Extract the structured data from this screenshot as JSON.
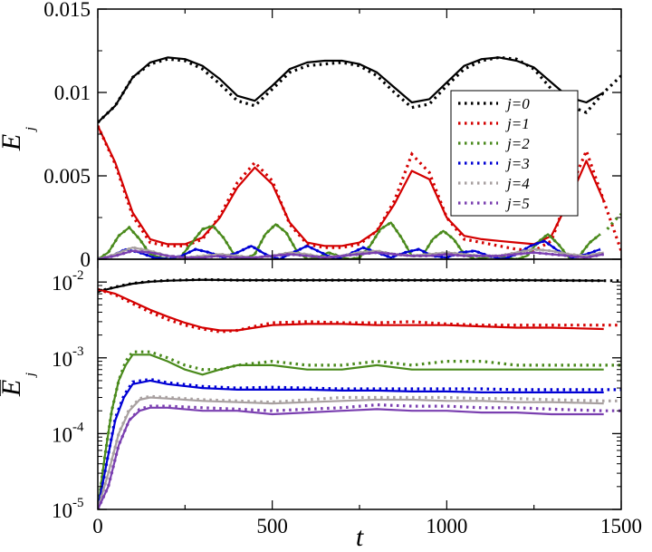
{
  "chart_data": [
    {
      "type": "line",
      "panel": "top",
      "ylabel": "E",
      "ylabel_sub": "j",
      "xlabel": "",
      "xlim": [
        0,
        1500
      ],
      "ylim": [
        0,
        0.015
      ],
      "yscale": "linear",
      "xticks": [
        0,
        500,
        1000,
        1500
      ],
      "yticks": [
        0,
        0.005,
        0.01,
        0.015
      ],
      "ytick_labels": [
        "0",
        "0.005",
        "0.01",
        "0.015"
      ],
      "grid": false,
      "legend_position": "right",
      "series": [
        {
          "name": "j=0",
          "color": "#000000",
          "x": [
            0,
            50,
            100,
            150,
            200,
            250,
            300,
            350,
            400,
            450,
            500,
            550,
            600,
            650,
            700,
            750,
            800,
            850,
            900,
            950,
            1000,
            1050,
            1100,
            1150,
            1200,
            1250,
            1300,
            1350,
            1400,
            1450
          ],
          "solid": [
            0.0082,
            0.0092,
            0.0109,
            0.0118,
            0.0121,
            0.012,
            0.0116,
            0.0108,
            0.0098,
            0.0095,
            0.0104,
            0.0114,
            0.0118,
            0.0119,
            0.0119,
            0.0117,
            0.0112,
            0.0103,
            0.0094,
            0.0096,
            0.0106,
            0.0116,
            0.012,
            0.0121,
            0.0119,
            0.0115,
            0.0106,
            0.0097,
            0.0094,
            0.01
          ],
          "dotted": [
            0.0082,
            0.0092,
            0.0109,
            0.0117,
            0.012,
            0.0119,
            0.0114,
            0.0105,
            0.0095,
            0.0092,
            0.0102,
            0.0112,
            0.0116,
            0.0117,
            0.0118,
            0.0116,
            0.011,
            0.01,
            0.0091,
            0.0093,
            0.0104,
            0.0114,
            0.0119,
            0.0121,
            0.012,
            0.0114,
            0.0102,
            0.0092,
            0.0088,
            0.01,
            0.011
          ]
        },
        {
          "name": "j=1",
          "color": "#d40000",
          "x": [
            0,
            50,
            100,
            150,
            200,
            250,
            300,
            350,
            400,
            450,
            500,
            550,
            600,
            650,
            700,
            750,
            800,
            850,
            900,
            950,
            1000,
            1050,
            1100,
            1150,
            1200,
            1250,
            1300,
            1350,
            1400,
            1450
          ],
          "solid": [
            0.008,
            0.0058,
            0.0028,
            0.0012,
            0.0009,
            0.0009,
            0.0013,
            0.0025,
            0.0043,
            0.0055,
            0.0045,
            0.0022,
            0.001,
            0.0008,
            0.0008,
            0.001,
            0.0017,
            0.0033,
            0.0053,
            0.0048,
            0.0025,
            0.0014,
            0.0012,
            0.0011,
            0.001,
            0.0009,
            0.0014,
            0.0035,
            0.0059,
            0.0035
          ],
          "dotted": [
            0.008,
            0.0057,
            0.0026,
            0.001,
            0.0008,
            0.0008,
            0.0012,
            0.0026,
            0.0046,
            0.0058,
            0.0047,
            0.0021,
            0.0009,
            0.0007,
            0.0007,
            0.0009,
            0.0017,
            0.0035,
            0.0063,
            0.0052,
            0.0025,
            0.0012,
            0.001,
            0.0008,
            0.0006,
            0.0005,
            0.0011,
            0.004,
            0.0065,
            0.0035,
            0.0005
          ]
        },
        {
          "name": "j=2",
          "color": "#4a8a1c",
          "x": [
            0,
            30,
            60,
            90,
            120,
            150,
            180,
            210,
            240,
            270,
            300,
            330,
            360,
            390,
            420,
            450,
            480,
            510,
            540,
            570,
            600,
            630,
            660,
            690,
            720,
            750,
            780,
            810,
            840,
            870,
            900,
            930,
            960,
            990,
            1020,
            1050,
            1080,
            1110,
            1140,
            1170,
            1200,
            1230,
            1260,
            1290,
            1320,
            1350,
            1380,
            1410,
            1440
          ],
          "solid": [
            0,
            0.0004,
            0.0014,
            0.0019,
            0.0012,
            0.0003,
            0.0001,
            0.0,
            0.0002,
            0.001,
            0.0018,
            0.002,
            0.0013,
            0.0003,
            0.0,
            0.0003,
            0.0015,
            0.0021,
            0.0016,
            0.0005,
            0.0,
            0.0001,
            0.0004,
            0.0002,
            0.0,
            0.0001,
            0.0008,
            0.0018,
            0.0022,
            0.0013,
            0.0002,
            0.0002,
            0.0012,
            0.0017,
            0.0012,
            0.0003,
            0.0,
            0.0001,
            0.0002,
            0.0001,
            0.0,
            0.0002,
            0.001,
            0.0015,
            0.0009,
            0.0001,
            0.0002,
            0.001,
            0.0015
          ],
          "dotted_extra": [
            [
              1460,
              0.0018
            ],
            [
              1480,
              0.0023
            ],
            [
              1500,
              0.0027
            ]
          ]
        },
        {
          "name": "j=3",
          "color": "#0000d4",
          "x": [
            0,
            40,
            80,
            120,
            160,
            200,
            240,
            280,
            320,
            360,
            400,
            440,
            480,
            520,
            560,
            600,
            640,
            680,
            720,
            760,
            800,
            840,
            880,
            920,
            960,
            1000,
            1040,
            1080,
            1120,
            1160,
            1200,
            1240,
            1280,
            1320,
            1360,
            1400,
            1440
          ],
          "solid": [
            0,
            0.0002,
            0.0006,
            0.0004,
            0.0001,
            0.0,
            0.0002,
            0.0006,
            0.0004,
            0.0001,
            0.0004,
            0.0008,
            0.0003,
            0.0,
            0.0004,
            0.0008,
            0.0004,
            0.0,
            0.0003,
            0.0007,
            0.0004,
            0.0001,
            0.0004,
            0.0006,
            0.0002,
            0.0001,
            0.0004,
            0.0005,
            0.0002,
            0.0,
            0.0003,
            0.0008,
            0.0011,
            0.0005,
            0.0001,
            0.0003,
            0.0006
          ]
        },
        {
          "name": "j=4",
          "color": "#a8a0a0",
          "x": [
            0,
            50,
            100,
            150,
            200,
            250,
            300,
            350,
            400,
            450,
            500,
            550,
            600,
            650,
            700,
            750,
            800,
            850,
            900,
            950,
            1000,
            1050,
            1100,
            1150,
            1200,
            1250,
            1300,
            1350,
            1400,
            1450
          ],
          "solid": [
            0,
            0.0003,
            0.0007,
            0.0005,
            0.0002,
            0.0001,
            0.0002,
            0.0003,
            0.0002,
            0.0001,
            0.0002,
            0.0004,
            0.0003,
            0.0001,
            0.0002,
            0.0004,
            0.0005,
            0.0003,
            0.0002,
            0.0003,
            0.0004,
            0.0003,
            0.0002,
            0.0002,
            0.0004,
            0.0006,
            0.0005,
            0.0003,
            0.0002,
            0.0004
          ]
        },
        {
          "name": "j=5",
          "color": "#7a3fb0",
          "x": [
            0,
            50,
            100,
            150,
            200,
            250,
            300,
            350,
            400,
            450,
            500,
            550,
            600,
            650,
            700,
            750,
            800,
            850,
            900,
            950,
            1000,
            1050,
            1100,
            1150,
            1200,
            1250,
            1300,
            1350,
            1400,
            1450
          ],
          "solid": [
            0,
            0.0002,
            0.0005,
            0.0004,
            0.0002,
            0.0001,
            0.0001,
            0.0002,
            0.0001,
            0.0001,
            0.0002,
            0.0003,
            0.0002,
            0.0001,
            0.0002,
            0.0003,
            0.0004,
            0.0003,
            0.0002,
            0.0002,
            0.0003,
            0.0002,
            0.0002,
            0.0002,
            0.0003,
            0.0004,
            0.0003,
            0.0002,
            0.0001,
            0.0003
          ]
        }
      ]
    },
    {
      "type": "line",
      "panel": "bottom",
      "ylabel": "E",
      "ylabel_sub": "j",
      "ylabel_overbar": true,
      "xlabel": "t",
      "xlim": [
        0,
        1500
      ],
      "ylim": [
        1e-05,
        0.02
      ],
      "yscale": "log",
      "xticks": [
        0,
        500,
        1000,
        1500
      ],
      "xtick_labels": [
        "0",
        "500",
        "1000",
        "1500"
      ],
      "yticks": [
        1e-05,
        0.0001,
        0.001,
        0.01
      ],
      "ytick_bases": [
        "10",
        "10",
        "10",
        "10"
      ],
      "ytick_exponents": [
        "-5",
        "-4",
        "-3",
        "-2"
      ],
      "grid": false,
      "series": [
        {
          "name": "j=0",
          "color": "#000000",
          "x": [
            0,
            50,
            100,
            150,
            200,
            300,
            400,
            600,
            800,
            1000,
            1200,
            1450
          ],
          "solid": [
            0.0075,
            0.0085,
            0.0095,
            0.0101,
            0.0104,
            0.0107,
            0.0106,
            0.0106,
            0.0106,
            0.0106,
            0.0106,
            0.0104
          ],
          "dotted": [
            0.0075,
            0.0086,
            0.0096,
            0.0102,
            0.0105,
            0.0108,
            0.0106,
            0.0106,
            0.0106,
            0.0106,
            0.0106,
            0.0104,
            0.0104
          ]
        },
        {
          "name": "j=1",
          "color": "#d40000",
          "x": [
            0,
            50,
            100,
            150,
            200,
            250,
            300,
            350,
            400,
            450,
            500,
            600,
            700,
            800,
            900,
            1000,
            1100,
            1200,
            1300,
            1450
          ],
          "solid": [
            0.008,
            0.007,
            0.0055,
            0.0043,
            0.0035,
            0.0029,
            0.0025,
            0.0023,
            0.0023,
            0.0025,
            0.0027,
            0.0028,
            0.0028,
            0.0027,
            0.0027,
            0.0027,
            0.0026,
            0.0025,
            0.0025,
            0.0024
          ],
          "dotted": [
            0.008,
            0.0068,
            0.0052,
            0.004,
            0.0032,
            0.0027,
            0.0024,
            0.0022,
            0.0023,
            0.0026,
            0.0029,
            0.003,
            0.0029,
            0.0029,
            0.003,
            0.0028,
            0.0027,
            0.0027,
            0.0027,
            0.0027,
            0.0027
          ]
        },
        {
          "name": "j=2",
          "color": "#4a8a1c",
          "x": [
            0,
            20,
            40,
            60,
            80,
            100,
            150,
            200,
            250,
            300,
            350,
            400,
            500,
            600,
            700,
            800,
            900,
            1000,
            1100,
            1200,
            1300,
            1450
          ],
          "solid": [
            1e-05,
            5e-05,
            0.0002,
            0.0005,
            0.0008,
            0.0011,
            0.0011,
            0.0009,
            0.0007,
            0.0006,
            0.0007,
            0.0008,
            0.0008,
            0.0007,
            0.0007,
            0.0008,
            0.0007,
            0.0007,
            0.0007,
            0.0007,
            0.0007,
            0.0007
          ],
          "dotted": [
            1e-05,
            5e-05,
            0.0002,
            0.0005,
            0.0009,
            0.0012,
            0.0012,
            0.001,
            0.0008,
            0.0007,
            0.0007,
            0.0008,
            0.0009,
            0.0008,
            0.0008,
            0.0009,
            0.0008,
            0.0009,
            0.0009,
            0.0008,
            0.0008,
            0.0008,
            0.0008
          ]
        },
        {
          "name": "j=3",
          "color": "#0000d4",
          "x": [
            0,
            25,
            50,
            75,
            100,
            150,
            200,
            300,
            400,
            500,
            600,
            700,
            800,
            900,
            1000,
            1100,
            1200,
            1300,
            1450
          ],
          "solid": [
            1e-05,
            4e-05,
            0.00015,
            0.0003,
            0.00045,
            0.0005,
            0.00045,
            0.0004,
            0.00038,
            0.00038,
            0.00038,
            0.00037,
            0.00037,
            0.00036,
            0.00036,
            0.00035,
            0.00035,
            0.00035,
            0.00035
          ],
          "dotted": [
            1e-05,
            4e-05,
            0.00016,
            0.00032,
            0.00048,
            0.00052,
            0.00047,
            0.00042,
            0.0004,
            0.00041,
            0.0004,
            0.00039,
            0.00039,
            0.00039,
            0.00039,
            0.00039,
            0.00038,
            0.00038,
            0.00038,
            0.00038
          ]
        },
        {
          "name": "j=4",
          "color": "#a8a0a0",
          "x": [
            0,
            30,
            60,
            90,
            120,
            150,
            200,
            300,
            400,
            500,
            600,
            700,
            800,
            900,
            1000,
            1100,
            1200,
            1300,
            1450
          ],
          "solid": [
            1e-05,
            3e-05,
            0.0001,
            0.0002,
            0.00028,
            0.0003,
            0.00029,
            0.00027,
            0.00026,
            0.00025,
            0.00026,
            0.00027,
            0.00028,
            0.00028,
            0.00027,
            0.00027,
            0.00026,
            0.00026,
            0.00025
          ],
          "dotted": [
            1e-05,
            3e-05,
            0.0001,
            0.00021,
            0.00029,
            0.00031,
            0.0003,
            0.00028,
            0.00027,
            0.00026,
            0.00028,
            0.0003,
            0.0003,
            0.0003,
            0.0003,
            0.00029,
            0.00029,
            0.00028,
            0.00027,
            0.00027
          ]
        },
        {
          "name": "j=5",
          "color": "#7a3fb0",
          "x": [
            0,
            30,
            60,
            90,
            120,
            150,
            200,
            300,
            400,
            500,
            600,
            700,
            800,
            900,
            1000,
            1100,
            1200,
            1300,
            1450
          ],
          "solid": [
            1e-05,
            2e-05,
            7e-05,
            0.00015,
            0.0002,
            0.00022,
            0.00022,
            0.0002,
            0.0002,
            0.00018,
            0.00019,
            0.0002,
            0.00021,
            0.0002,
            0.0002,
            0.00019,
            0.00019,
            0.00018,
            0.00018
          ],
          "dotted": [
            1e-05,
            2e-05,
            7e-05,
            0.00015,
            0.00021,
            0.00023,
            0.00023,
            0.00022,
            0.00021,
            0.0002,
            0.00021,
            0.00022,
            0.00024,
            0.00023,
            0.00023,
            0.00022,
            0.00022,
            0.00021,
            0.0002,
            0.0002
          ]
        }
      ]
    }
  ]
}
